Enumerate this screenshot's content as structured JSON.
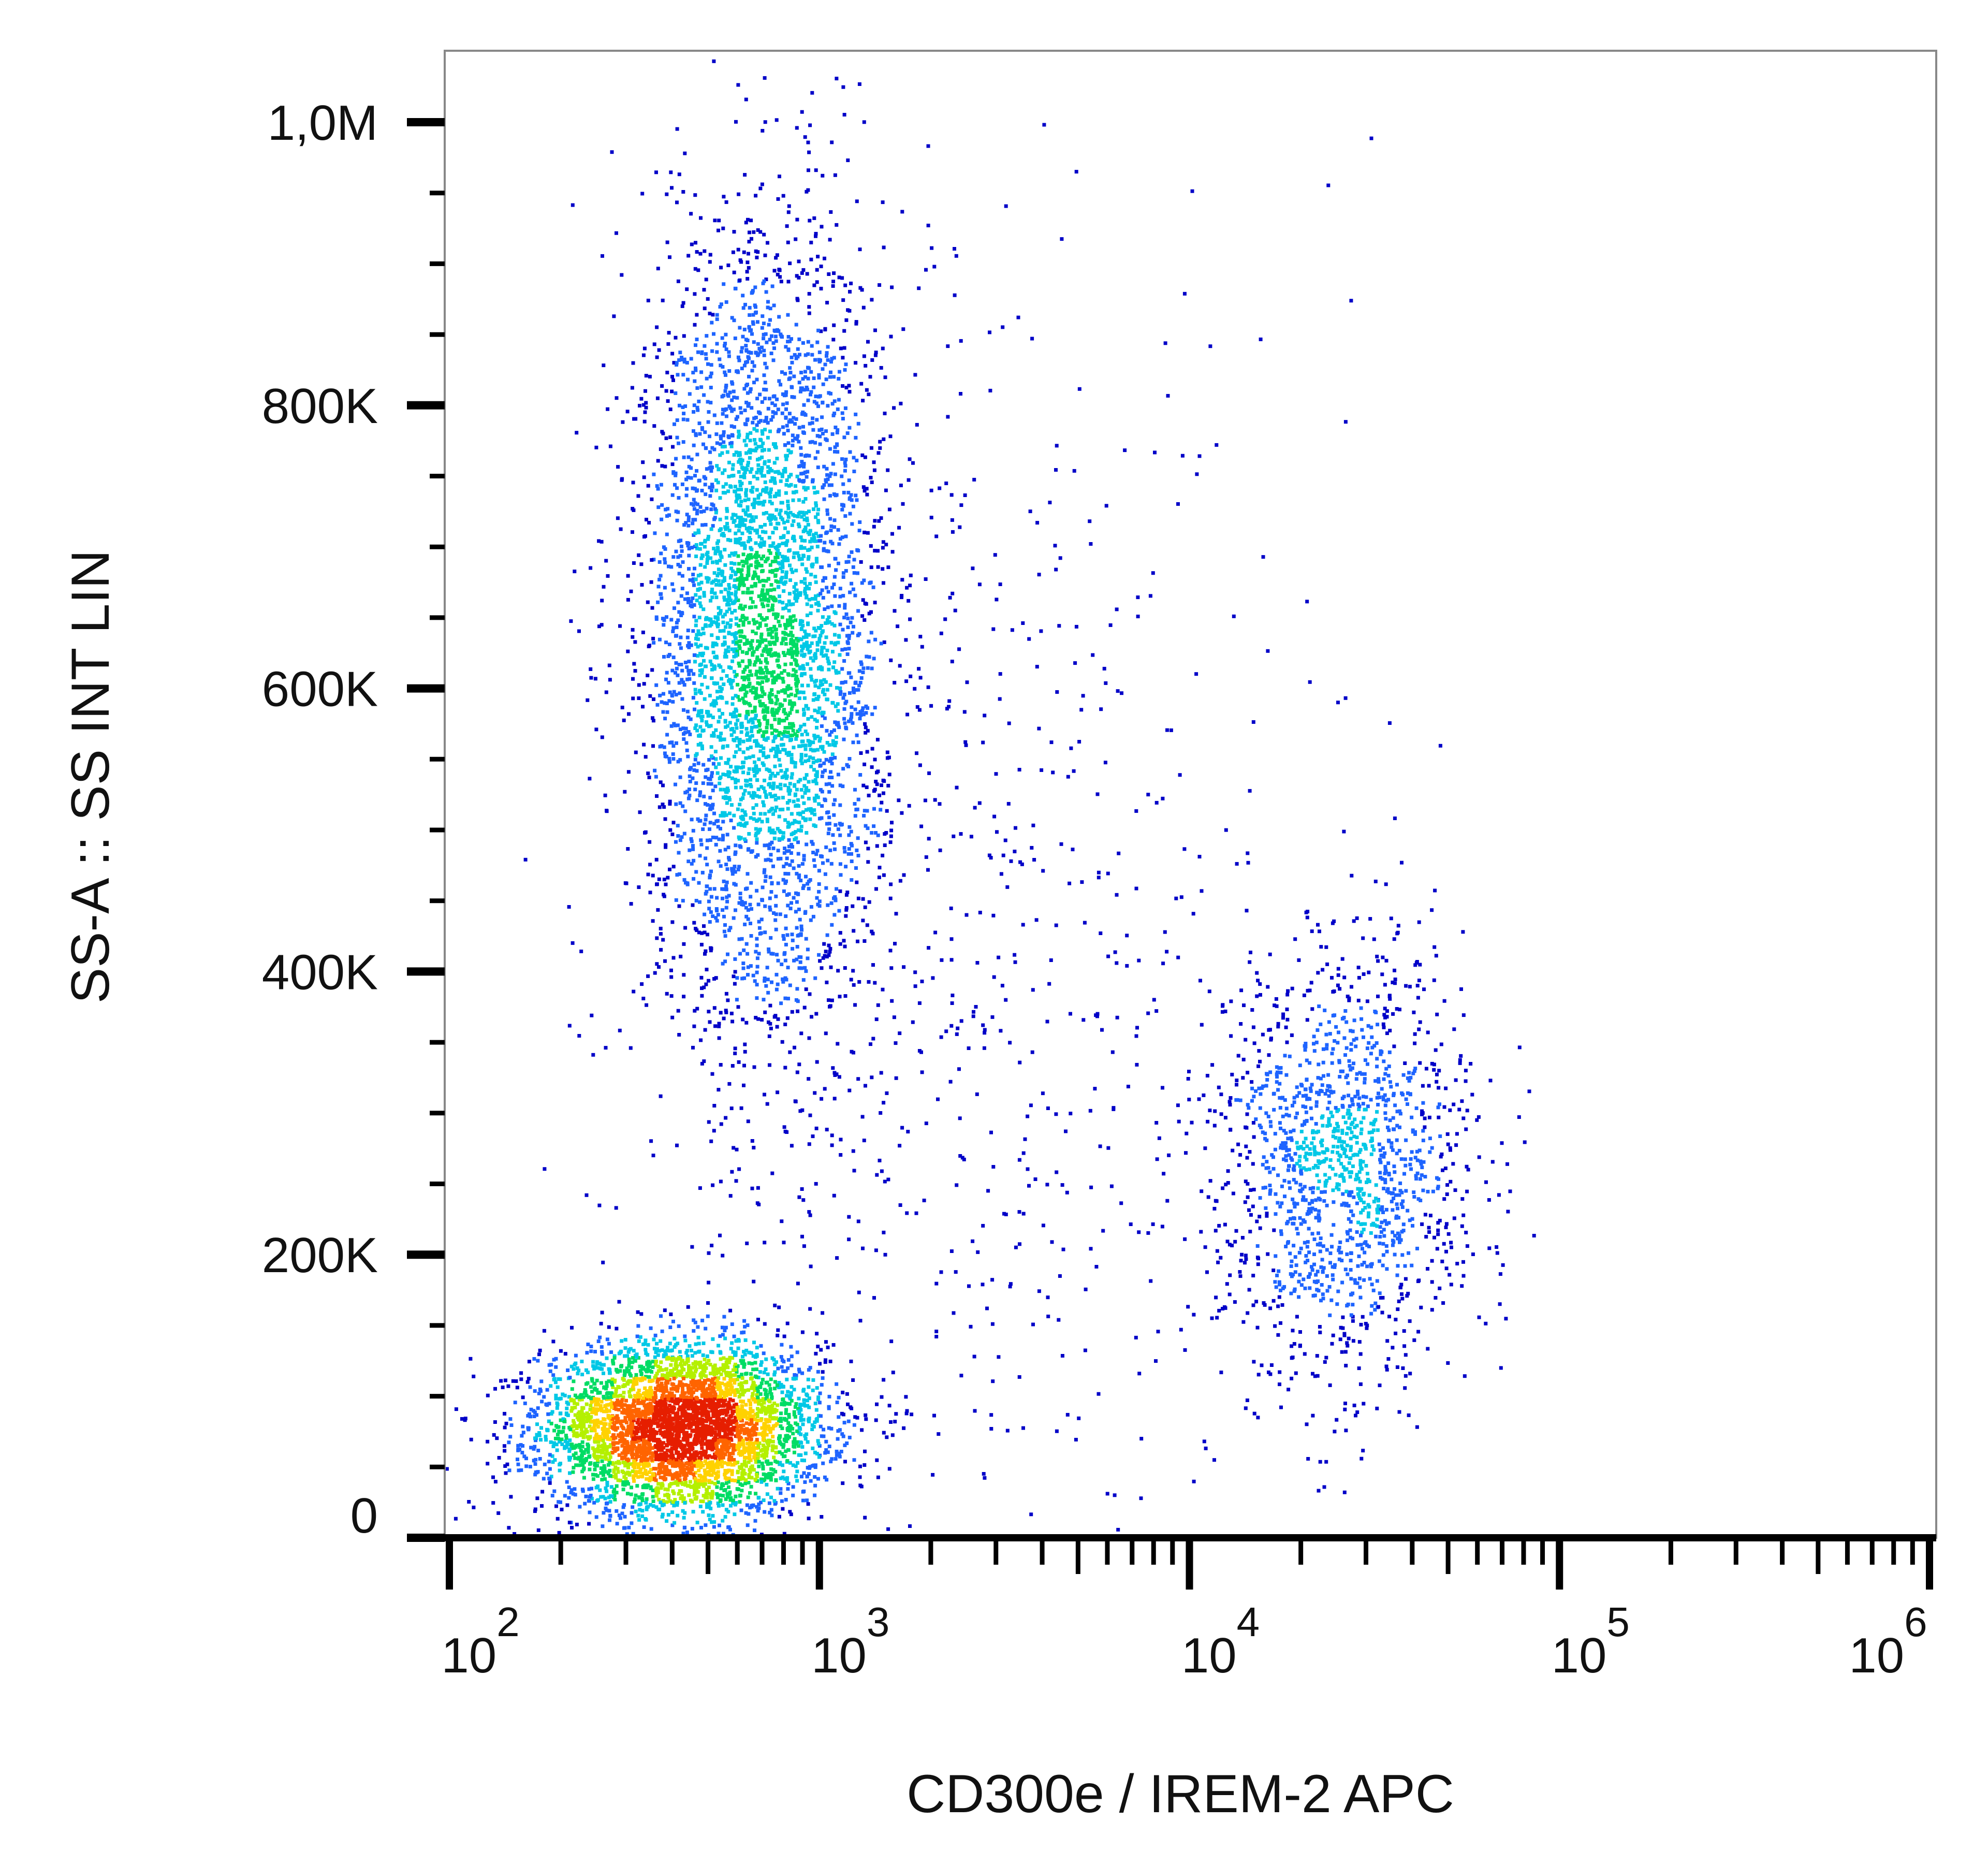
{
  "chart_data": {
    "type": "scatter",
    "subtype": "flow-cytometry density dot plot",
    "xlabel": "CD300e / IREM-2 APC",
    "ylabel": "SS-A :: SS INT LIN",
    "x_scale": "log",
    "xlim": [
      97,
      1000000
    ],
    "ylim": [
      0,
      1050000
    ],
    "x_ticks": [
      {
        "value": 100,
        "base": "10",
        "exp": "2"
      },
      {
        "value": 1000,
        "base": "10",
        "exp": "3"
      },
      {
        "value": 10000,
        "base": "10",
        "exp": "4"
      },
      {
        "value": 100000,
        "base": "10",
        "exp": "5"
      },
      {
        "value": 1000000,
        "base": "10",
        "exp": "6"
      }
    ],
    "y_ticks": [
      {
        "value": 0,
        "label": "0"
      },
      {
        "value": 200000,
        "label": "200K"
      },
      {
        "value": 400000,
        "label": "400K"
      },
      {
        "value": 600000,
        "label": "600K"
      },
      {
        "value": 800000,
        "label": "800K"
      },
      {
        "value": 1000000,
        "label": "1,0M"
      }
    ],
    "y_minor_step": 50000,
    "grid": false,
    "density_colormap": [
      "#0000c8",
      "#1e64ff",
      "#00c8e6",
      "#00dc64",
      "#b4f000",
      "#ffd200",
      "#ff6400",
      "#e61e00"
    ],
    "populations": [
      {
        "x_center": 420,
        "x_log_sd": 0.19,
        "y_center": 78000,
        "y_sd": 30000,
        "events": 4200
      },
      {
        "x_center": 700,
        "x_log_sd": 0.16,
        "y_center": 640000,
        "y_sd": 140000,
        "events": 4300
      },
      {
        "x_center": 26000,
        "x_log_sd": 0.17,
        "y_center": 265000,
        "y_sd": 75000,
        "events": 1500
      },
      {
        "x_center": 2500,
        "x_log_sd": 0.45,
        "y_center": 400000,
        "y_sd": 250000,
        "events": 700
      }
    ]
  }
}
